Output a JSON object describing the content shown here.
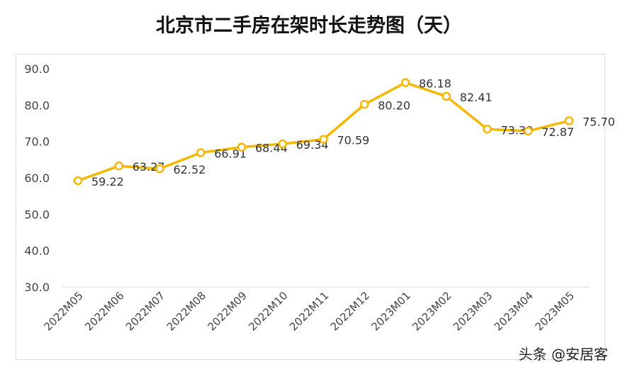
{
  "chart_data": {
    "type": "line",
    "title": "北京市二手房在架时长走势图（天）",
    "xlabel": "",
    "ylabel": "",
    "ylim": [
      30,
      90
    ],
    "yticks": [
      "30.0",
      "40.0",
      "50.0",
      "60.0",
      "70.0",
      "80.0",
      "90.0"
    ],
    "grid": false,
    "categories": [
      "2022M05",
      "2022M06",
      "2022M07",
      "2022M08",
      "2022M09",
      "2022M10",
      "2022M11",
      "2022M12",
      "2023M01",
      "2023M02",
      "2023M03",
      "2023M04",
      "2023M05"
    ],
    "series": [
      {
        "name": "在架时长",
        "values": [
          59.22,
          63.27,
          62.52,
          66.91,
          68.44,
          69.34,
          70.59,
          80.2,
          86.18,
          82.41,
          73.39,
          72.87,
          75.7
        ],
        "labels": [
          "59.22",
          "63.27",
          "62.52",
          "66.91",
          "68.44",
          "69.34",
          "70.59",
          "80.20",
          "86.18",
          "82.41",
          "73.39",
          "72.87",
          "75.70"
        ]
      }
    ],
    "line_color": "#f5b800"
  },
  "watermark": "头条 @安居客"
}
